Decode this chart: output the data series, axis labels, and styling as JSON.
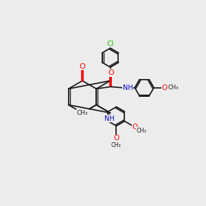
{
  "background_color": "#ececec",
  "bond_color": "#1a1a1a",
  "atom_colors": {
    "O": "#ff0000",
    "N": "#0000cc",
    "Cl": "#22bb00",
    "C": "#1a1a1a"
  },
  "figsize": [
    3.0,
    3.0
  ],
  "dpi": 100,
  "xlim": [
    0,
    10
  ],
  "ylim": [
    0,
    10
  ]
}
